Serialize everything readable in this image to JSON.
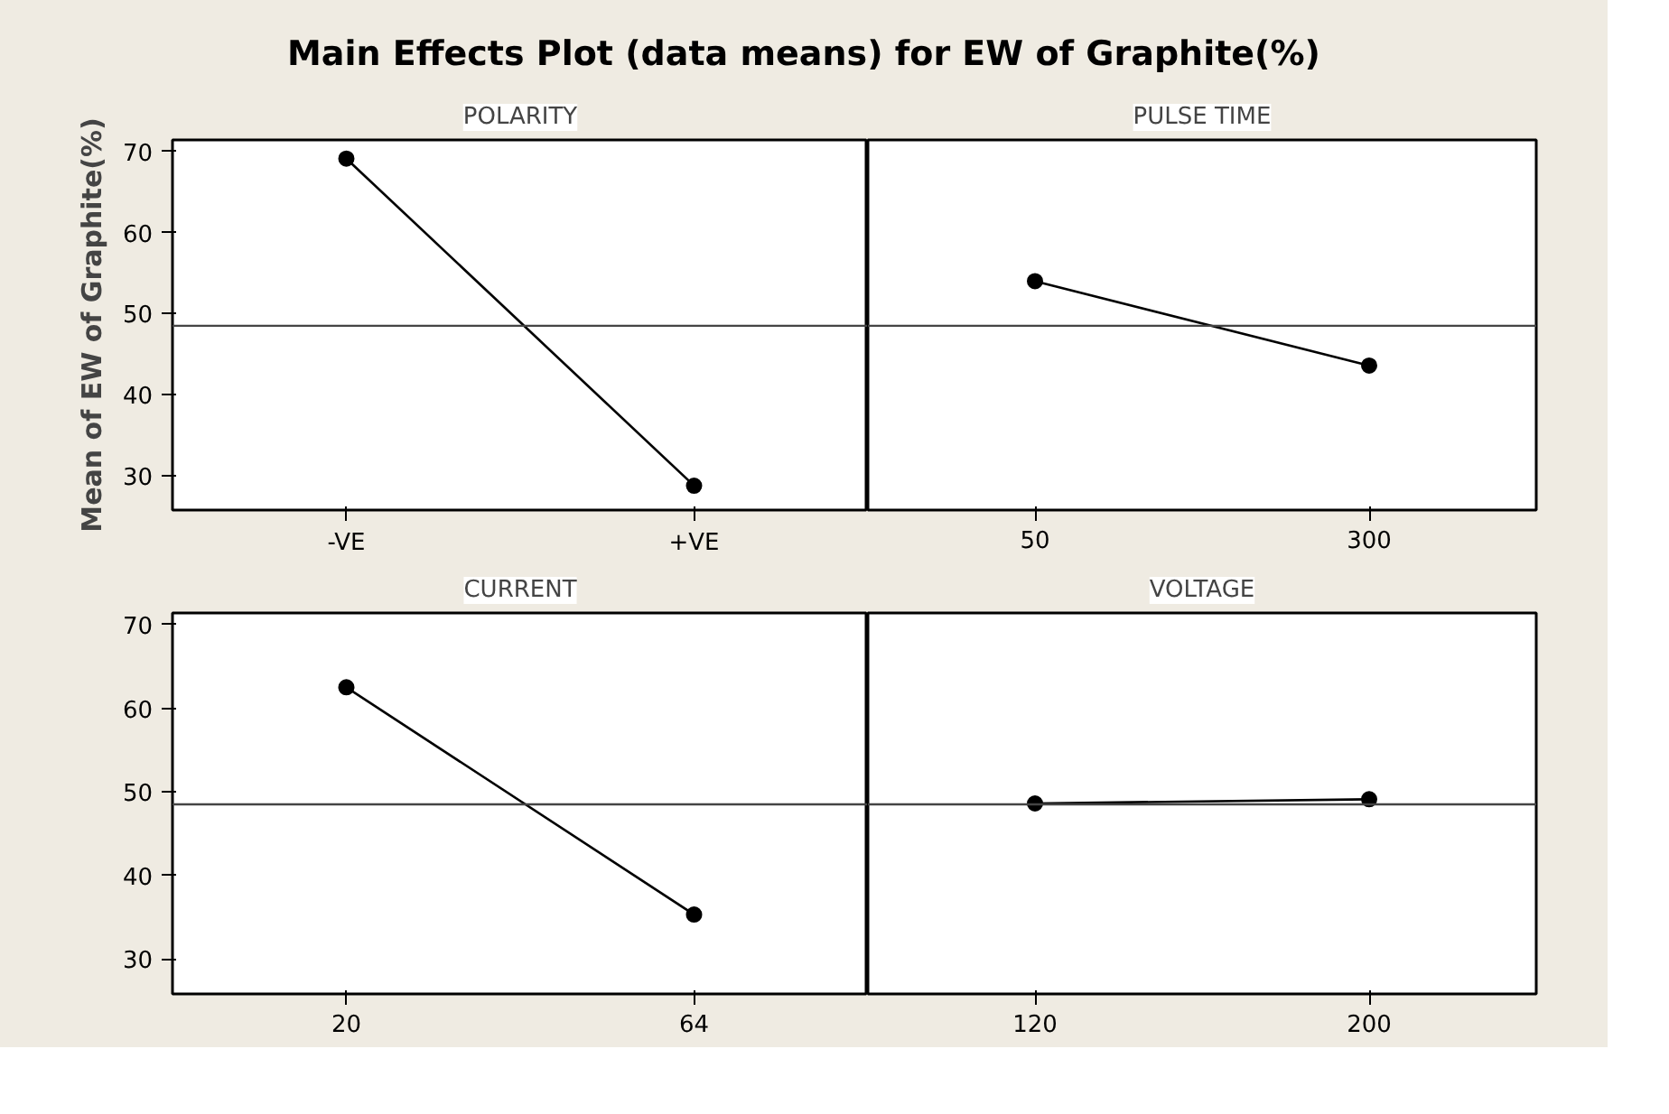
{
  "chart_data": [
    {
      "type": "line",
      "title": "Main Effects Plot (data means) for EW of Graphite(%)",
      "ylabel": "Mean of EW of Graphite(%)",
      "xlabel": "POLARITY",
      "categories": [
        "-VE",
        "+VE"
      ],
      "values": [
        69.1,
        28.8
      ],
      "color": "#000000",
      "marker": "circle",
      "ylim": [
        25.8,
        71.4
      ],
      "yticks": [
        30,
        40,
        50,
        60,
        70
      ],
      "ref_lines": [
        {
          "axis": "y",
          "value": 48.5
        }
      ]
    },
    {
      "type": "line",
      "xlabel": "PULSE TIME",
      "categories": [
        "50",
        "300"
      ],
      "values": [
        54.0,
        43.6
      ],
      "color": "#000000",
      "marker": "circle",
      "ylim": [
        25.8,
        71.4
      ],
      "yticks": [
        30,
        40,
        50,
        60,
        70
      ],
      "ref_lines": [
        {
          "axis": "y",
          "value": 48.5
        }
      ],
      "tick_labels": "x"
    },
    {
      "type": "line",
      "xlabel": "CURRENT",
      "categories": [
        "20",
        "64"
      ],
      "values": [
        62.5,
        35.3
      ],
      "color": "#000000",
      "marker": "circle",
      "ylim": [
        25.8,
        71.4
      ],
      "yticks": [
        30,
        40,
        50,
        60,
        70
      ],
      "ref_lines": [
        {
          "axis": "y",
          "value": 48.5
        }
      ]
    },
    {
      "type": "line",
      "xlabel": "VOLTAGE",
      "categories": [
        "120",
        "200"
      ],
      "values": [
        48.6,
        49.1
      ],
      "color": "#000000",
      "marker": "circle",
      "ylim": [
        25.8,
        71.4
      ],
      "yticks": [
        30,
        40,
        50,
        60,
        70
      ],
      "ref_lines": [
        {
          "axis": "y",
          "value": 48.5
        }
      ],
      "tick_labels": "x"
    }
  ]
}
